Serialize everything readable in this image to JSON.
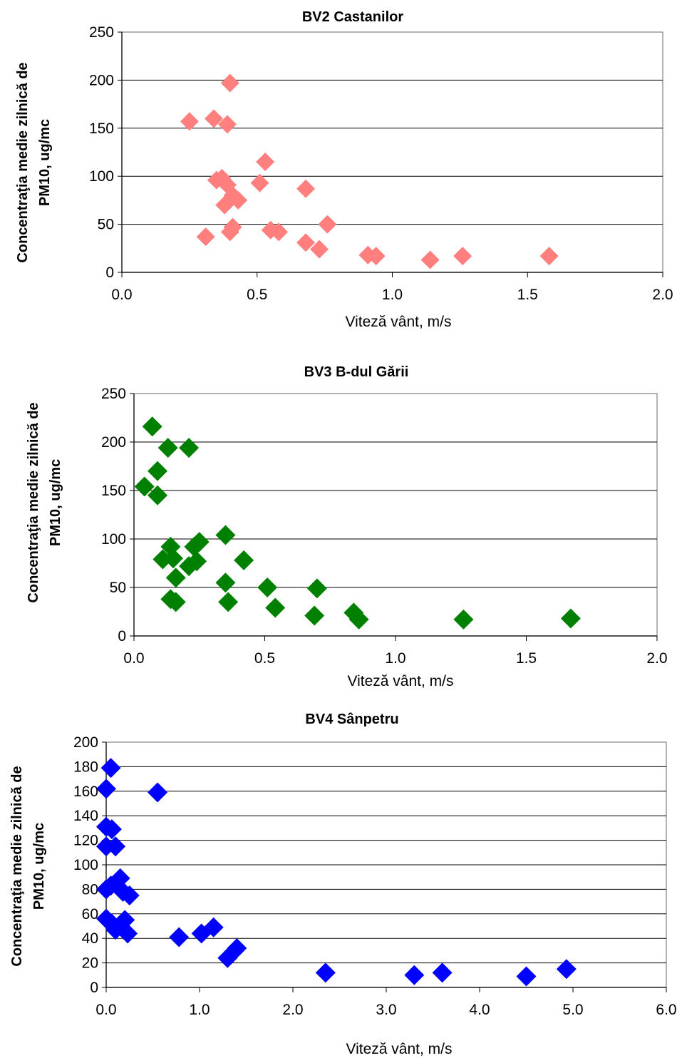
{
  "chart_data": [
    {
      "type": "scatter",
      "title": "BV2 Castanilor",
      "xlabel": "Viteză vânt, m/s",
      "ylabel_line1": "Concentraţia medie zilnică de",
      "ylabel_line2": "PM10, ug/mc",
      "xlim": [
        0,
        2
      ],
      "ylim": [
        0,
        250
      ],
      "xticks": [
        "0.0",
        "0.5",
        "1.0",
        "1.5",
        "2.0"
      ],
      "xtick_values": [
        0,
        0.5,
        1.0,
        1.5,
        2.0
      ],
      "yticks": [
        "0",
        "50",
        "100",
        "150",
        "200",
        "250"
      ],
      "ytick_values": [
        0,
        50,
        100,
        150,
        200,
        250
      ],
      "grid": "horizontal",
      "color": "#ff7f7f",
      "marker": "diamond",
      "points": [
        [
          0.25,
          157
        ],
        [
          0.34,
          160
        ],
        [
          0.39,
          154
        ],
        [
          0.4,
          197
        ],
        [
          0.53,
          115
        ],
        [
          0.35,
          96
        ],
        [
          0.37,
          98
        ],
        [
          0.39,
          91
        ],
        [
          0.41,
          80
        ],
        [
          0.43,
          75
        ],
        [
          0.38,
          70
        ],
        [
          0.51,
          93
        ],
        [
          0.68,
          87
        ],
        [
          0.76,
          50
        ],
        [
          0.31,
          37
        ],
        [
          0.4,
          42
        ],
        [
          0.41,
          47
        ],
        [
          0.55,
          44
        ],
        [
          0.58,
          42
        ],
        [
          0.68,
          31
        ],
        [
          0.73,
          24
        ],
        [
          0.91,
          18
        ],
        [
          0.94,
          17
        ],
        [
          1.14,
          13
        ],
        [
          1.26,
          17
        ],
        [
          1.58,
          17
        ]
      ]
    },
    {
      "type": "scatter",
      "title": "BV3 B-dul Gării",
      "xlabel": "Viteză vânt, m/s",
      "ylabel_line1": "Concentraţia medie zilnică de",
      "ylabel_line2": "PM10, ug/mc",
      "xlim": [
        0,
        2
      ],
      "ylim": [
        0,
        250
      ],
      "xticks": [
        "0.0",
        "0.5",
        "1.0",
        "1.5",
        "2.0"
      ],
      "xtick_values": [
        0,
        0.5,
        1.0,
        1.5,
        2.0
      ],
      "yticks": [
        "0",
        "50",
        "100",
        "150",
        "200",
        "250"
      ],
      "ytick_values": [
        0,
        50,
        100,
        150,
        200,
        250
      ],
      "grid": "horizontal",
      "color": "#008000",
      "marker": "diamond",
      "points": [
        [
          0.07,
          216
        ],
        [
          0.13,
          194
        ],
        [
          0.21,
          194
        ],
        [
          0.09,
          170
        ],
        [
          0.04,
          154
        ],
        [
          0.09,
          145
        ],
        [
          0.35,
          104
        ],
        [
          0.14,
          92
        ],
        [
          0.23,
          92
        ],
        [
          0.25,
          97
        ],
        [
          0.11,
          79
        ],
        [
          0.15,
          80
        ],
        [
          0.21,
          72
        ],
        [
          0.24,
          77
        ],
        [
          0.42,
          78
        ],
        [
          0.16,
          60
        ],
        [
          0.35,
          55
        ],
        [
          0.51,
          50
        ],
        [
          0.7,
          49
        ],
        [
          0.14,
          38
        ],
        [
          0.16,
          35
        ],
        [
          0.36,
          35
        ],
        [
          0.54,
          29
        ],
        [
          0.69,
          21
        ],
        [
          0.84,
          24
        ],
        [
          0.86,
          17
        ],
        [
          1.26,
          17
        ],
        [
          1.67,
          18
        ]
      ]
    },
    {
      "type": "scatter",
      "title": "BV4 Sânpetru",
      "xlabel": "Viteză vânt, m/s",
      "ylabel_line1": "Concentraţia medie zilnică de",
      "ylabel_line2": "PM10, ug/mc",
      "xlim": [
        0,
        6
      ],
      "ylim": [
        0,
        200
      ],
      "xticks": [
        "0.0",
        "1.0",
        "2.0",
        "3.0",
        "4.0",
        "5.0",
        "6.0"
      ],
      "xtick_values": [
        0,
        1,
        2,
        3,
        4,
        5,
        6
      ],
      "yticks": [
        "0",
        "20",
        "40",
        "60",
        "80",
        "100",
        "120",
        "140",
        "160",
        "180",
        "200"
      ],
      "ytick_values": [
        0,
        20,
        40,
        60,
        80,
        100,
        120,
        140,
        160,
        180,
        200
      ],
      "grid": "horizontal",
      "color": "#0000ff",
      "marker": "diamond",
      "points": [
        [
          0.05,
          179
        ],
        [
          0.0,
          162
        ],
        [
          0.55,
          159
        ],
        [
          0.0,
          131
        ],
        [
          0.06,
          129
        ],
        [
          0.0,
          115
        ],
        [
          0.1,
          115
        ],
        [
          0.15,
          89
        ],
        [
          0.0,
          80
        ],
        [
          0.05,
          83
        ],
        [
          0.18,
          78
        ],
        [
          0.25,
          75
        ],
        [
          0.0,
          56
        ],
        [
          0.06,
          52
        ],
        [
          0.1,
          47
        ],
        [
          0.2,
          55
        ],
        [
          0.23,
          44
        ],
        [
          0.78,
          41
        ],
        [
          1.02,
          44
        ],
        [
          1.15,
          49
        ],
        [
          1.3,
          24
        ],
        [
          1.4,
          32
        ],
        [
          2.35,
          12
        ],
        [
          3.3,
          10
        ],
        [
          3.6,
          12
        ],
        [
          4.5,
          9
        ],
        [
          4.93,
          15
        ]
      ]
    }
  ]
}
